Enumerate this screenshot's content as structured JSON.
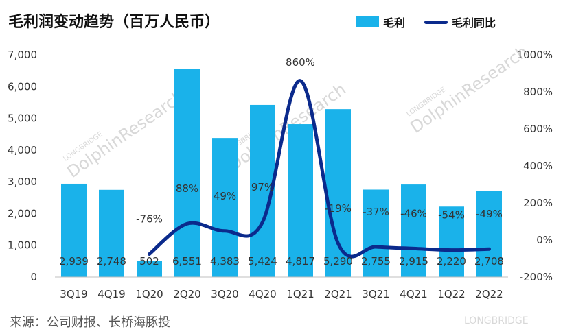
{
  "title": "毛利润变动趋势（百万人民币）",
  "source": "来源：公司财报、长桥海豚投",
  "watermark": {
    "brand": "DolphinResearch",
    "brand_small": "LONGBRIDGE",
    "corner": "LONGBRIDGE"
  },
  "colors": {
    "bar": "#1ab2ea",
    "line": "#0b2a8c"
  },
  "chart_data": {
    "type": "bar+line",
    "categories": [
      "3Q19",
      "4Q19",
      "1Q20",
      "2Q20",
      "3Q20",
      "4Q20",
      "1Q21",
      "2Q21",
      "3Q21",
      "4Q21",
      "1Q22",
      "2Q22"
    ],
    "series": [
      {
        "name": "毛利",
        "type": "bar",
        "axis": "left",
        "values": [
          2939,
          2748,
          502,
          6551,
          4383,
          5424,
          4817,
          5290,
          2755,
          2915,
          2220,
          2708
        ],
        "labels": [
          "2,939",
          "2,748",
          "502",
          "6,551",
          "4,383",
          "5,424",
          "4,817",
          "5,290",
          "2,755",
          "2,915",
          "2,220",
          "2,708"
        ]
      },
      {
        "name": "毛利同比",
        "type": "line",
        "axis": "right",
        "smooth": true,
        "values": [
          null,
          null,
          -76,
          88,
          49,
          97,
          860,
          -19,
          -37,
          -46,
          -54,
          -49
        ],
        "labels": [
          null,
          null,
          "-76%",
          "88%",
          "49%",
          "97%",
          "860%",
          "-19%",
          "-37%",
          "-46%",
          "-54%",
          "-49%"
        ]
      }
    ],
    "y_left": {
      "min": 0,
      "max": 7000,
      "ticks": [
        0,
        1000,
        2000,
        3000,
        4000,
        5000,
        6000,
        7000
      ],
      "tick_labels": [
        "0",
        "1,000",
        "2,000",
        "3,000",
        "4,000",
        "5,000",
        "6,000",
        "7,000"
      ]
    },
    "y_right": {
      "min": -200,
      "max": 1000,
      "ticks": [
        -200,
        0,
        200,
        400,
        600,
        800,
        1000
      ],
      "tick_labels": [
        "-200%",
        "0%",
        "200%",
        "400%",
        "600%",
        "800%",
        "1000%"
      ]
    },
    "legend": {
      "position": "top-right"
    },
    "grid": false
  }
}
